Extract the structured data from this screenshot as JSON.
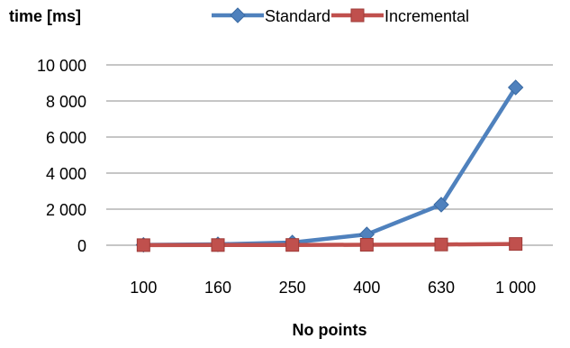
{
  "chart_data": {
    "type": "line",
    "title": "",
    "ylabel": "time [ms]",
    "xlabel": "No points",
    "categories": [
      "100",
      "160",
      "250",
      "400",
      "630",
      "1 000"
    ],
    "ylim": [
      0,
      10000
    ],
    "y_ticks": [
      0,
      2000,
      4000,
      6000,
      8000,
      10000
    ],
    "y_tick_labels": [
      "0",
      "2 000",
      "4 000",
      "6 000",
      "8 000",
      "10 000"
    ],
    "grid": true,
    "legend_position": "top-right",
    "series": [
      {
        "name": "Standard",
        "color": "#4F81BD",
        "marker": "diamond",
        "values": [
          20,
          50,
          150,
          600,
          2250,
          8750
        ]
      },
      {
        "name": "Incremental",
        "color": "#C0504D",
        "marker": "square",
        "values": [
          5,
          10,
          15,
          25,
          40,
          70
        ]
      }
    ]
  }
}
